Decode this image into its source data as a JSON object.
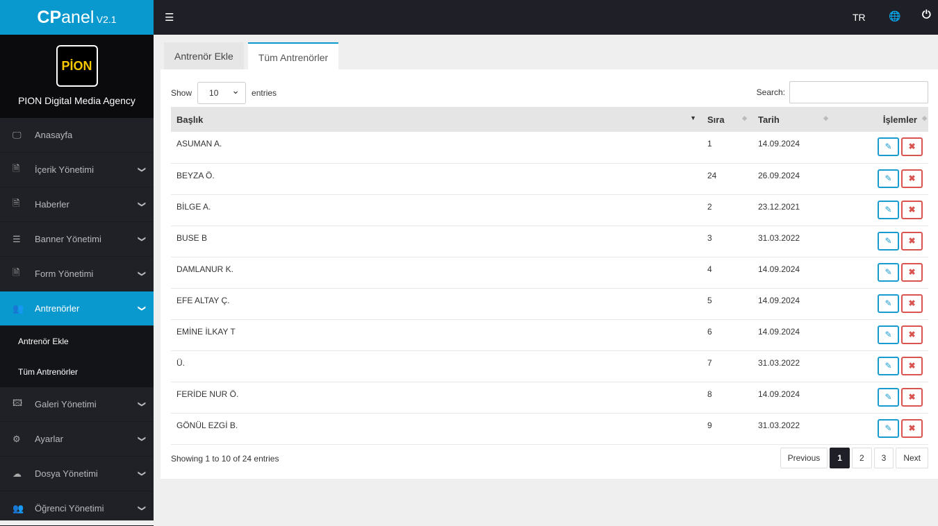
{
  "brand": {
    "name_bold": "CP",
    "name_rest": "anel",
    "version": "V2.1"
  },
  "topbar": {
    "menu_icon": "indent-icon",
    "lang": "TR",
    "globe_icon": "globe-icon",
    "power_icon": "power-icon"
  },
  "profile": {
    "logo_text": "PİON",
    "name": "PION Digital Media Agency"
  },
  "sidebar": {
    "items": [
      {
        "label": "Anasayfa",
        "icon": "🖵",
        "chev": false
      },
      {
        "label": "İçerik Yönetimi",
        "icon": "🗎",
        "chev": true
      },
      {
        "label": "Haberler",
        "icon": "🗎",
        "chev": true
      },
      {
        "label": "Banner Yönetimi",
        "icon": "☰",
        "chev": true
      },
      {
        "label": "Form Yönetimi",
        "icon": "🗎",
        "chev": true
      },
      {
        "label": "Antrenörler",
        "icon": "👥",
        "chev": true,
        "active": true
      },
      {
        "label": "Galeri Yönetimi",
        "icon": "🖾",
        "chev": true
      },
      {
        "label": "Ayarlar",
        "icon": "⚙",
        "chev": true
      },
      {
        "label": "Dosya Yönetimi",
        "icon": "☁",
        "chev": true
      },
      {
        "label": "Öğrenci Yönetimi",
        "icon": "👥",
        "chev": true
      }
    ],
    "sub": [
      "Antrenör Ekle",
      "Tüm Antrenörler"
    ]
  },
  "tabs": [
    {
      "label": "Antrenör Ekle"
    },
    {
      "label": "Tüm Antrenörler",
      "active": true
    }
  ],
  "table_controls": {
    "show": "Show",
    "length": "10",
    "entries": "entries",
    "search": "Search:",
    "search_value": ""
  },
  "columns": [
    "Başlık",
    "Sıra",
    "Tarih",
    "İşlemler"
  ],
  "rows": [
    [
      "ASUMAN A.",
      "1",
      "14.09.2024"
    ],
    [
      "BEYZA Ö.",
      "24",
      "26.09.2024"
    ],
    [
      "BİLGE A.",
      "2",
      "23.12.2021"
    ],
    [
      "BUSE B",
      "3",
      "31.03.2022"
    ],
    [
      "DAMLANUR K.",
      "4",
      "14.09.2024"
    ],
    [
      "EFE ALTAY Ç.",
      "5",
      "14.09.2024"
    ],
    [
      "EMİNE İLKAY T",
      "6",
      "14.09.2024"
    ],
    [
      "Ü.",
      "7",
      "31.03.2022"
    ],
    [
      "FERİDE NUR Ö.",
      "8",
      "14.09.2024"
    ],
    [
      "GÖNÜL EZGİ B.",
      "9",
      "31.03.2022"
    ]
  ],
  "footer": {
    "info": "Showing 1 to 10 of 24 entries",
    "previous": "Previous",
    "pages": [
      "1",
      "2",
      "3"
    ],
    "current": "1",
    "next": "Next"
  },
  "colors": {
    "accent": "#0a99cf",
    "topbar": "#1f2027",
    "edit": "#1a9bd0",
    "delete": "#d9534f"
  }
}
